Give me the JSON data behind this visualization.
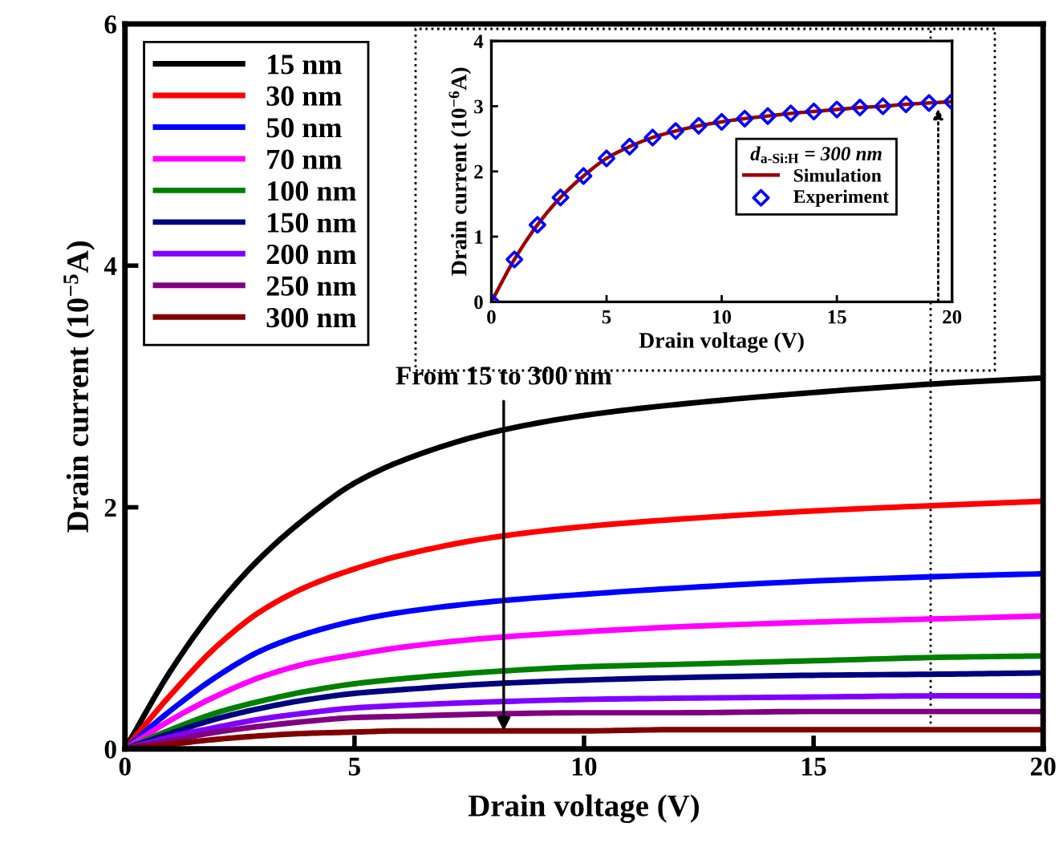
{
  "chart_data": [
    {
      "type": "line",
      "xlabel": "Drain voltage (V)",
      "ylabel": "Drain current (10$^{−5}$A)",
      "xlim": [
        0,
        20
      ],
      "ylim": [
        0,
        6
      ],
      "xticks": [
        0,
        5,
        10,
        15,
        20
      ],
      "yticks": [
        0,
        2,
        4,
        6
      ],
      "grid": false,
      "legend": "top left",
      "marker": "none",
      "line_style": "solid",
      "x": [
        0,
        1,
        2,
        3,
        4,
        5,
        6,
        8,
        10,
        12,
        15,
        18,
        20
      ],
      "annotations": [
        {
          "text": "From 15 to 300 nm",
          "x": 8.25,
          "y": 0.15
        }
      ],
      "ref_lines": [
        {
          "axis": "x",
          "value": 17.55,
          "color": "#000000",
          "line_style": "dotted"
        }
      ],
      "series": [
        {
          "name": "15 nm",
          "color": "#000000",
          "values": [
            0,
            0.65,
            1.18,
            1.6,
            1.93,
            2.2,
            2.38,
            2.62,
            2.76,
            2.85,
            2.95,
            3.03,
            3.07
          ]
        },
        {
          "name": "30 nm",
          "color": "#ff0000",
          "values": [
            0,
            0.45,
            0.85,
            1.15,
            1.35,
            1.49,
            1.6,
            1.75,
            1.84,
            1.9,
            1.97,
            2.02,
            2.05
          ]
        },
        {
          "name": "50 nm",
          "color": "#0000ff",
          "values": [
            0,
            0.32,
            0.6,
            0.82,
            0.96,
            1.06,
            1.13,
            1.22,
            1.28,
            1.33,
            1.39,
            1.43,
            1.45
          ]
        },
        {
          "name": "70 nm",
          "color": "#ff00ff",
          "values": [
            0,
            0.24,
            0.44,
            0.6,
            0.71,
            0.78,
            0.84,
            0.92,
            0.97,
            1.01,
            1.05,
            1.08,
            1.1
          ]
        },
        {
          "name": "100 nm",
          "color": "#008000",
          "values": [
            0,
            0.16,
            0.3,
            0.4,
            0.48,
            0.54,
            0.58,
            0.64,
            0.68,
            0.7,
            0.73,
            0.76,
            0.77
          ]
        },
        {
          "name": "150 nm",
          "color": "#000080",
          "values": [
            0,
            0.13,
            0.25,
            0.34,
            0.41,
            0.46,
            0.49,
            0.54,
            0.57,
            0.59,
            0.61,
            0.62,
            0.63
          ]
        },
        {
          "name": "200 nm",
          "color": "#8000ff",
          "values": [
            0,
            0.1,
            0.18,
            0.25,
            0.3,
            0.34,
            0.36,
            0.39,
            0.41,
            0.42,
            0.43,
            0.44,
            0.44
          ]
        },
        {
          "name": "250 nm",
          "color": "#800080",
          "values": [
            0,
            0.07,
            0.14,
            0.19,
            0.23,
            0.26,
            0.27,
            0.29,
            0.3,
            0.3,
            0.31,
            0.31,
            0.31
          ]
        },
        {
          "name": "300 nm",
          "color": "#800000",
          "values": [
            0,
            0.04,
            0.08,
            0.11,
            0.13,
            0.14,
            0.15,
            0.15,
            0.15,
            0.16,
            0.16,
            0.16,
            0.16
          ]
        }
      ]
    },
    {
      "type": "line",
      "xlabel": "Drain voltage (V)",
      "ylabel": "Drain current (10$^{−6}$A)",
      "xlim": [
        0,
        20
      ],
      "ylim": [
        0,
        4
      ],
      "xticks": [
        0,
        5,
        10,
        15,
        20
      ],
      "yticks": [
        0,
        1,
        2,
        3,
        4
      ],
      "grid": false,
      "legend": "right",
      "legend_title": "d$_{a-Si:H}$ = 300 nm",
      "x": [
        0,
        1,
        2,
        3,
        4,
        5,
        6,
        7,
        8,
        9,
        10,
        11,
        12,
        13,
        14,
        15,
        16,
        17,
        18,
        19,
        20
      ],
      "series": [
        {
          "name": "Simulation",
          "color": "#990000",
          "marker": "none",
          "values": [
            0,
            0.65,
            1.18,
            1.6,
            1.93,
            2.2,
            2.38,
            2.52,
            2.62,
            2.7,
            2.76,
            2.81,
            2.85,
            2.89,
            2.92,
            2.95,
            2.98,
            3.0,
            3.03,
            3.05,
            3.07
          ]
        },
        {
          "name": "Experiment",
          "type": "scatter",
          "color": "#0000ff",
          "marker": "diamond",
          "values": [
            0,
            0.65,
            1.18,
            1.6,
            1.93,
            2.2,
            2.38,
            2.52,
            2.62,
            2.7,
            2.76,
            2.81,
            2.85,
            2.89,
            2.92,
            2.95,
            2.98,
            3.0,
            3.03,
            3.05,
            3.07
          ]
        }
      ]
    }
  ]
}
